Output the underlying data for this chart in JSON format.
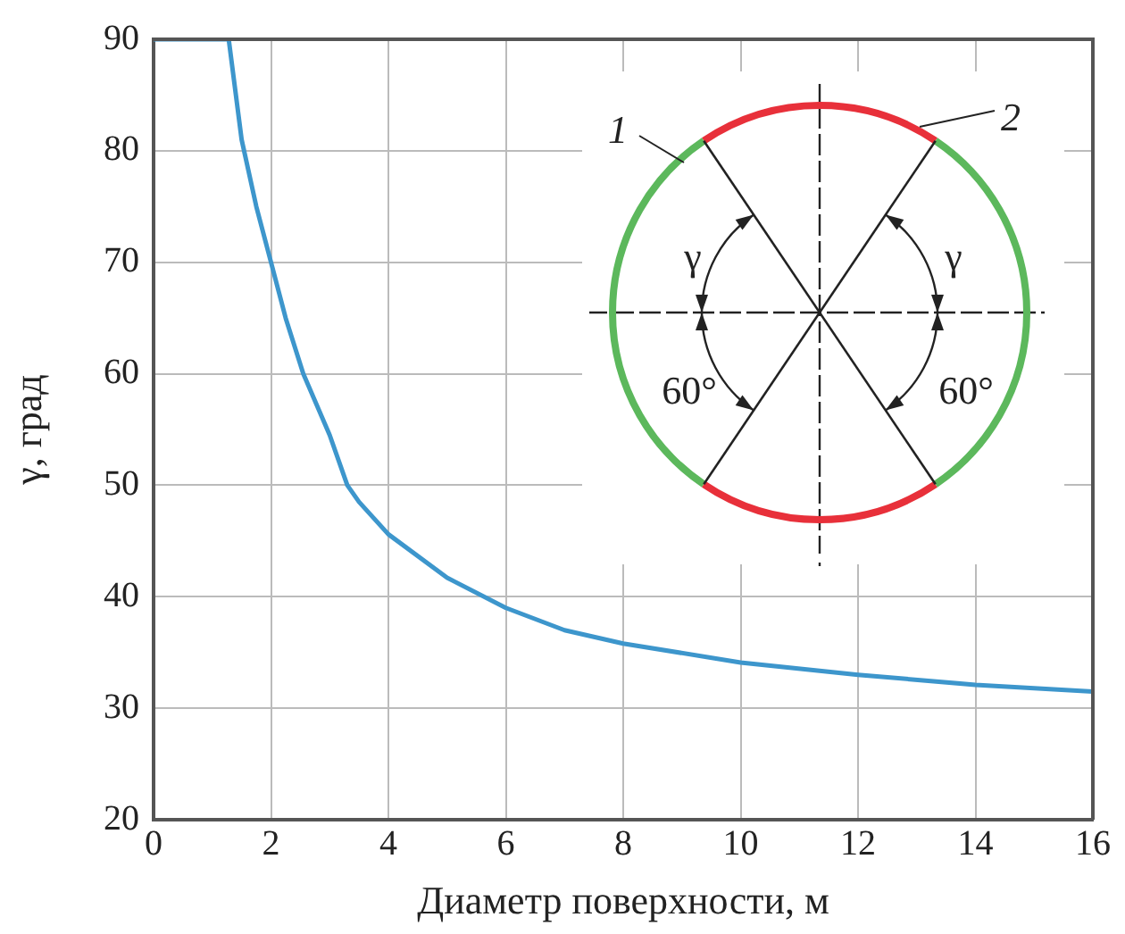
{
  "chart_data": {
    "type": "line",
    "xlabel": "Диаметр поверхности, м",
    "ylabel": "γ, град",
    "x": [
      0,
      0.5,
      1,
      1.28,
      1.5,
      1.75,
      2,
      2.25,
      2.55,
      3,
      3.3,
      3.5,
      4,
      5,
      6,
      7,
      8,
      10,
      12,
      14,
      16
    ],
    "series": [
      {
        "color": "#3d96cc",
        "values": [
          90,
          90,
          90,
          90,
          81,
          75,
          70,
          65,
          60,
          54.5,
          50,
          48.5,
          45.6,
          41.7,
          39,
          37,
          35.8,
          34.1,
          33,
          32.1,
          31.5
        ]
      }
    ],
    "xlim": [
      0,
      16
    ],
    "xticks": [
      0,
      2,
      4,
      6,
      8,
      10,
      12,
      14,
      16
    ],
    "ylim": [
      20,
      90
    ],
    "yticks": [
      20,
      30,
      40,
      50,
      60,
      70,
      80,
      90
    ],
    "grid": true,
    "legend": false,
    "marker": "none",
    "line_style": "solid",
    "annotations": [
      "1",
      "2",
      "γ",
      "γ",
      "60°",
      "60°"
    ]
  }
}
